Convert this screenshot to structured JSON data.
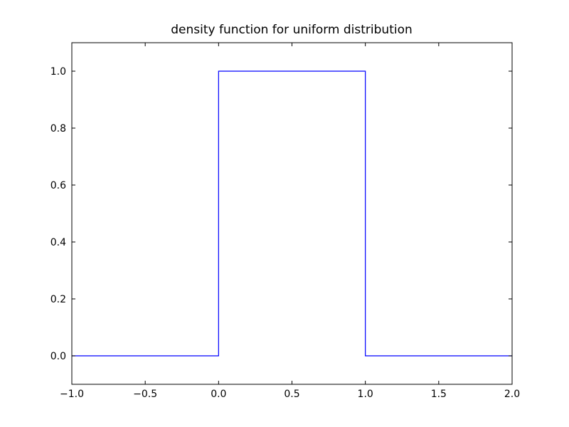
{
  "chart_data": {
    "type": "line",
    "title": "density function for uniform distribution",
    "x": [
      -1,
      0,
      0,
      1,
      1,
      2
    ],
    "values": [
      0,
      0,
      1,
      1,
      0,
      0
    ],
    "color": "#0000ff",
    "xlim": [
      -1,
      2
    ],
    "ylim": [
      -0.1,
      1.1
    ],
    "xticks": [
      {
        "value": -1,
        "label": "−1.0"
      },
      {
        "value": -0.5,
        "label": "−0.5"
      },
      {
        "value": 0,
        "label": "0.0"
      },
      {
        "value": 0.5,
        "label": "0.5"
      },
      {
        "value": 1,
        "label": "1.0"
      },
      {
        "value": 1.5,
        "label": "1.5"
      },
      {
        "value": 2,
        "label": "2.0"
      }
    ],
    "yticks": [
      {
        "value": 0,
        "label": "0.0"
      },
      {
        "value": 0.2,
        "label": "0.2"
      },
      {
        "value": 0.4,
        "label": "0.4"
      },
      {
        "value": 0.6,
        "label": "0.6"
      },
      {
        "value": 0.8,
        "label": "0.8"
      },
      {
        "value": 1,
        "label": "1.0"
      }
    ],
    "grid": false
  }
}
